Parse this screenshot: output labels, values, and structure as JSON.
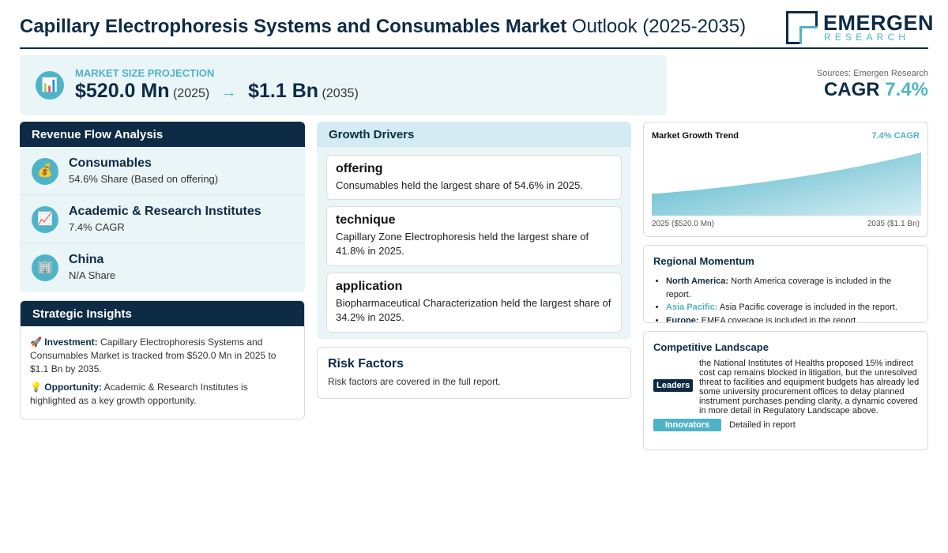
{
  "header": {
    "title_bold": "Capillary Electrophoresis Systems and Consumables Market",
    "title_rest": " Outlook (2025-2035)",
    "logo_main": "EMERGEN",
    "logo_sub": "RESEARCH"
  },
  "projection": {
    "icon": "chart-icon",
    "label": "MARKET SIZE PROJECTION",
    "start_value": "$520.0 Mn",
    "start_year": "(2025)",
    "arrow": "→",
    "end_value": "$1.1 Bn",
    "end_year": "(2035)"
  },
  "cagr": {
    "sources": "Sources: Emergen Research",
    "label": "CAGR",
    "value": "7.4%"
  },
  "revenue_flow": {
    "title": "Revenue Flow Analysis",
    "items": [
      {
        "icon": "money-bag-icon",
        "title": "Consumables",
        "subtitle": "54.6% Share (Based on offering)"
      },
      {
        "icon": "trend-chart-icon",
        "title": "Academic & Research Institutes",
        "subtitle": "7.4% CAGR"
      },
      {
        "icon": "building-icon",
        "title": "China",
        "subtitle": "N/A Share"
      }
    ]
  },
  "strategic": {
    "title": "Strategic Insights",
    "investment_label": "Investment:",
    "investment_text": " Capillary Electrophoresis Systems and Consumables Market is tracked from $520.0 Mn in 2025 to $1.1 Bn by 2035.",
    "opportunity_label": "Opportunity:",
    "opportunity_text": " Academic & Research Institutes is highlighted as a key growth opportunity."
  },
  "drivers": {
    "title": "Growth Drivers",
    "items": [
      {
        "title": "offering",
        "text": "Consumables held the largest share of 54.6% in 2025."
      },
      {
        "title": "technique",
        "text": "Capillary Zone Electrophoresis held the largest share of 41.8% in 2025."
      },
      {
        "title": "application",
        "text": "Biopharmaceutical Characterization held the largest share of 34.2% in 2025."
      }
    ]
  },
  "risk": {
    "title": "Risk Factors",
    "text": "Risk factors are covered in the full report."
  },
  "trend": {
    "title": "Market Growth Trend",
    "cagr": "7.4% CAGR",
    "left_label": "2025 ($520.0 Mn)",
    "right_label": "2035 ($1.1 Bn)"
  },
  "chart_data": {
    "type": "area",
    "title": "Market Growth Trend",
    "x": [
      2025,
      2035
    ],
    "values": [
      520.0,
      1100.0
    ],
    "units": "USD Mn",
    "grid": false
  },
  "regional": {
    "title": "Regional Momentum",
    "items": [
      {
        "name": "North America:",
        "text": " North America coverage is included in the report."
      },
      {
        "name": "Asia Pacific:",
        "text": " Asia Pacific coverage is included in the report."
      },
      {
        "name": "Europe:",
        "text": " EMEA coverage is included in the report."
      }
    ]
  },
  "competitive": {
    "title": "Competitive Landscape",
    "leaders_label": "Leaders",
    "leaders_text": "the National Institutes of Healths proposed 15% indirect cost cap remains blocked in litigation, but the unresolved threat to facilities and equipment budgets has already led some university procurement offices to delay planned instrument purchases pending clarity, a dynamic covered in more detail in Regulatory Landscape above.",
    "innovators_label": "Innovators",
    "innovators_text": "Detailed in report"
  },
  "colors": {
    "navy": "#0d2b45",
    "accent": "#4fb3c8",
    "panel": "#eaf5f8"
  }
}
